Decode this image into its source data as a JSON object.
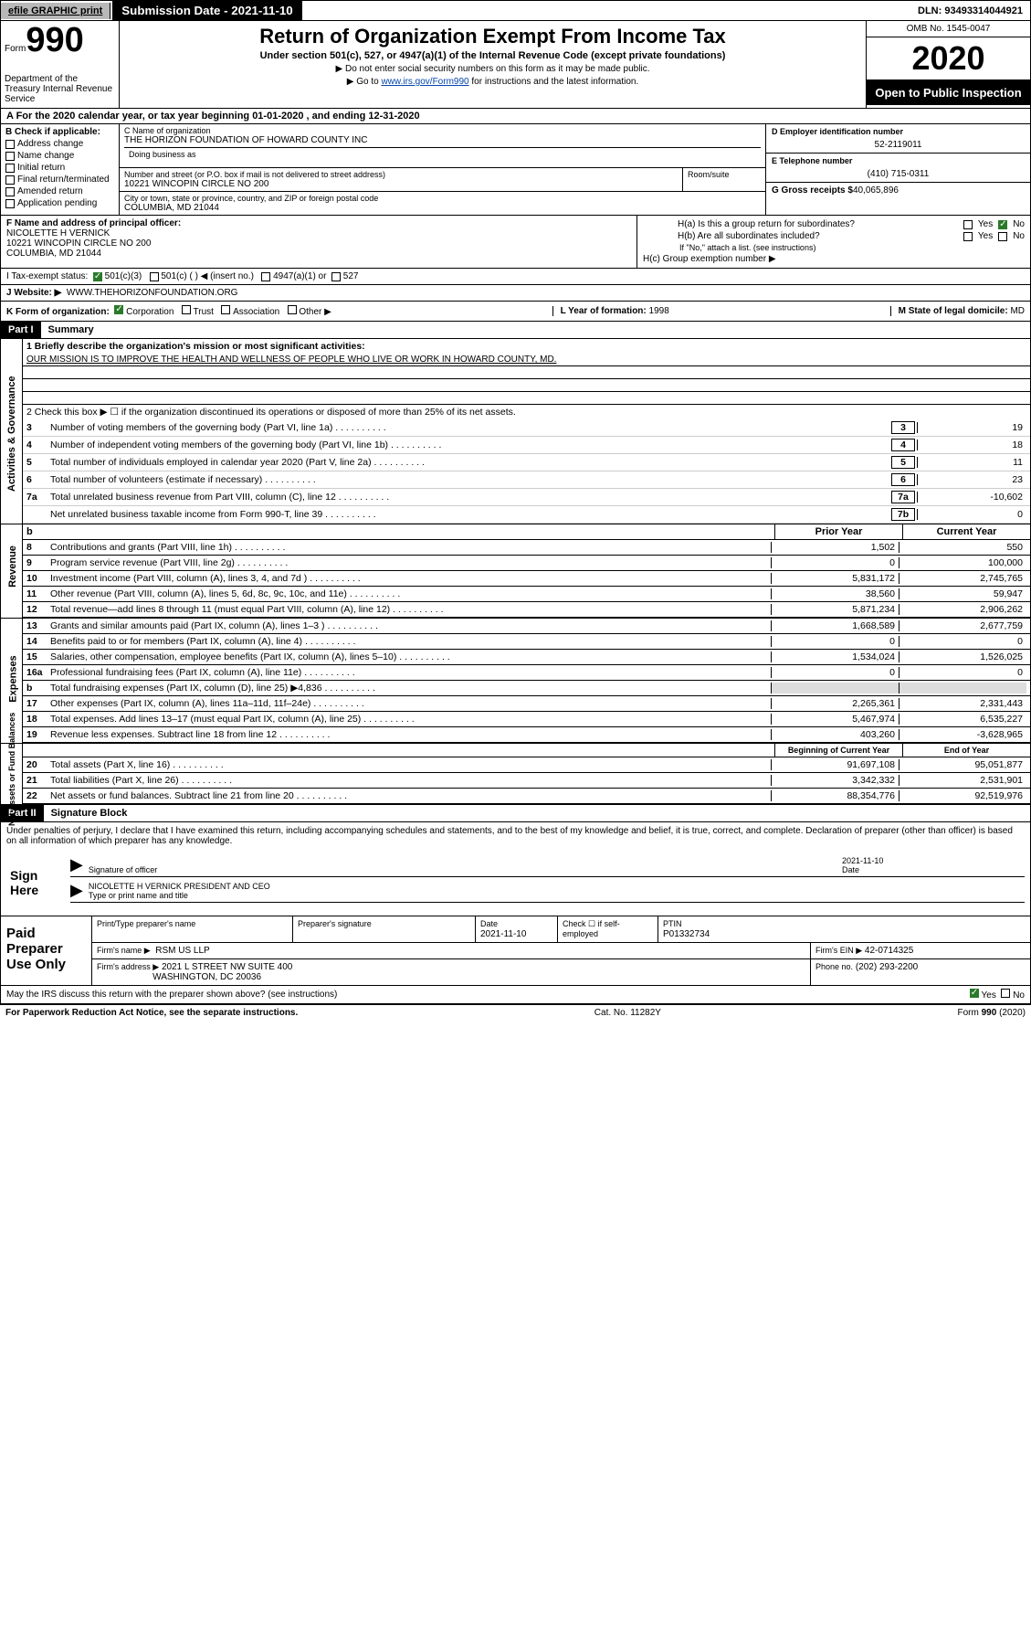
{
  "topbar": {
    "efile": "efile GRAPHIC print",
    "submission_label": "Submission Date - 2021-11-10",
    "dln_label": "DLN: 93493314044921"
  },
  "header": {
    "form_word": "Form",
    "form_number": "990",
    "dept": "Department of the Treasury\nInternal Revenue Service",
    "title": "Return of Organization Exempt From Income Tax",
    "subtitle": "Under section 501(c), 527, or 4947(a)(1) of the Internal Revenue Code (except private foundations)",
    "note1": "▶ Do not enter social security numbers on this form as it may be made public.",
    "note2_pre": "▶ Go to ",
    "note2_link": "www.irs.gov/Form990",
    "note2_post": " for instructions and the latest information.",
    "omb": "OMB No. 1545-0047",
    "year": "2020",
    "open": "Open to Public Inspection"
  },
  "row_a": {
    "text": "A For the 2020 calendar year, or tax year beginning 01-01-2020    , and ending 12-31-2020"
  },
  "col_b": {
    "label": "B Check if applicable:",
    "items": [
      "Address change",
      "Name change",
      "Initial return",
      "Final return/terminated",
      "Amended return",
      "Application pending"
    ]
  },
  "col_c": {
    "name_label": "C Name of organization",
    "name": "THE HORIZON FOUNDATION OF HOWARD COUNTY INC",
    "dba_label": "Doing business as",
    "street_label": "Number and street (or P.O. box if mail is not delivered to street address)",
    "street": "10221 WINCOPIN CIRCLE NO 200",
    "suite_label": "Room/suite",
    "city_label": "City or town, state or province, country, and ZIP or foreign postal code",
    "city": "COLUMBIA, MD  21044"
  },
  "col_d": {
    "label": "D Employer identification number",
    "value": "52-2119011"
  },
  "col_e": {
    "label": "E Telephone number",
    "value": "(410) 715-0311"
  },
  "col_g": {
    "label": "G Gross receipts $",
    "value": "40,065,896"
  },
  "row_f": {
    "label": "F  Name and address of principal officer:",
    "name": "NICOLETTE H VERNICK",
    "street": "10221 WINCOPIN CIRCLE NO 200",
    "city": "COLUMBIA, MD  21044"
  },
  "row_h": {
    "ha": "H(a)  Is this a group return for subordinates?",
    "hb": "H(b)  Are all subordinates included?",
    "hb_note": "If \"No,\" attach a list. (see instructions)",
    "hc": "H(c)  Group exemption number ▶",
    "yes": "Yes",
    "no": "No"
  },
  "row_i": {
    "label": "I   Tax-exempt status:",
    "opts": [
      "501(c)(3)",
      "501(c) (  ) ◀ (insert no.)",
      "4947(a)(1) or",
      "527"
    ]
  },
  "row_j": {
    "label": "J   Website: ▶",
    "value": "WWW.THEHORIZONFOUNDATION.ORG"
  },
  "row_k": {
    "label": "K Form of organization:",
    "opts": [
      "Corporation",
      "Trust",
      "Association",
      "Other ▶"
    ],
    "l_label": "L Year of formation:",
    "l_val": "1998",
    "m_label": "M State of legal domicile:",
    "m_val": "MD"
  },
  "part1": {
    "hdr": "Part I",
    "title": "Summary"
  },
  "summary": {
    "q1_label": "1   Briefly describe the organization's mission or most significant activities:",
    "q1_text": "OUR MISSION IS TO IMPROVE THE HEALTH AND WELLNESS OF PEOPLE WHO LIVE OR WORK IN HOWARD COUNTY, MD.",
    "q2": "2   Check this box ▶ ☐  if the organization discontinued its operations or disposed of more than 25% of its net assets.",
    "tabs": {
      "gov": "Activities & Governance",
      "rev": "Revenue",
      "exp": "Expenses",
      "net": "Net Assets or Fund Balances"
    },
    "lines_gov": [
      {
        "n": "3",
        "t": "Number of voting members of the governing body (Part VI, line 1a)",
        "box": "3",
        "v": "19"
      },
      {
        "n": "4",
        "t": "Number of independent voting members of the governing body (Part VI, line 1b)",
        "box": "4",
        "v": "18"
      },
      {
        "n": "5",
        "t": "Total number of individuals employed in calendar year 2020 (Part V, line 2a)",
        "box": "5",
        "v": "11"
      },
      {
        "n": "6",
        "t": "Total number of volunteers (estimate if necessary)",
        "box": "6",
        "v": "23"
      },
      {
        "n": "7a",
        "t": "Total unrelated business revenue from Part VIII, column (C), line 12",
        "box": "7a",
        "v": "-10,602"
      },
      {
        "n": "",
        "t": "Net unrelated business taxable income from Form 990-T, line 39",
        "box": "7b",
        "v": "0"
      }
    ],
    "col_hdrs": {
      "py": "Prior Year",
      "cy": "Current Year"
    },
    "lines_rev": [
      {
        "n": "8",
        "t": "Contributions and grants (Part VIII, line 1h)",
        "py": "1,502",
        "cy": "550"
      },
      {
        "n": "9",
        "t": "Program service revenue (Part VIII, line 2g)",
        "py": "0",
        "cy": "100,000"
      },
      {
        "n": "10",
        "t": "Investment income (Part VIII, column (A), lines 3, 4, and 7d )",
        "py": "5,831,172",
        "cy": "2,745,765"
      },
      {
        "n": "11",
        "t": "Other revenue (Part VIII, column (A), lines 5, 6d, 8c, 9c, 10c, and 11e)",
        "py": "38,560",
        "cy": "59,947"
      },
      {
        "n": "12",
        "t": "Total revenue—add lines 8 through 11 (must equal Part VIII, column (A), line 12)",
        "py": "5,871,234",
        "cy": "2,906,262"
      }
    ],
    "lines_exp": [
      {
        "n": "13",
        "t": "Grants and similar amounts paid (Part IX, column (A), lines 1–3 )",
        "py": "1,668,589",
        "cy": "2,677,759"
      },
      {
        "n": "14",
        "t": "Benefits paid to or for members (Part IX, column (A), line 4)",
        "py": "0",
        "cy": "0"
      },
      {
        "n": "15",
        "t": "Salaries, other compensation, employee benefits (Part IX, column (A), lines 5–10)",
        "py": "1,534,024",
        "cy": "1,526,025"
      },
      {
        "n": "16a",
        "t": "Professional fundraising fees (Part IX, column (A), line 11e)",
        "py": "0",
        "cy": "0"
      },
      {
        "n": "b",
        "t": "Total fundraising expenses (Part IX, column (D), line 25) ▶4,836",
        "py": "",
        "cy": ""
      },
      {
        "n": "17",
        "t": "Other expenses (Part IX, column (A), lines 11a–11d, 11f–24e)",
        "py": "2,265,361",
        "cy": "2,331,443"
      },
      {
        "n": "18",
        "t": "Total expenses. Add lines 13–17 (must equal Part IX, column (A), line 25)",
        "py": "5,467,974",
        "cy": "6,535,227"
      },
      {
        "n": "19",
        "t": "Revenue less expenses. Subtract line 18 from line 12",
        "py": "403,260",
        "cy": "-3,628,965"
      }
    ],
    "col_hdrs2": {
      "py": "Beginning of Current Year",
      "cy": "End of Year"
    },
    "lines_net": [
      {
        "n": "20",
        "t": "Total assets (Part X, line 16)",
        "py": "91,697,108",
        "cy": "95,051,877"
      },
      {
        "n": "21",
        "t": "Total liabilities (Part X, line 26)",
        "py": "3,342,332",
        "cy": "2,531,901"
      },
      {
        "n": "22",
        "t": "Net assets or fund balances. Subtract line 21 from line 20",
        "py": "88,354,776",
        "cy": "92,519,976"
      }
    ]
  },
  "part2": {
    "hdr": "Part II",
    "title": "Signature Block",
    "decl": "Under penalties of perjury, I declare that I have examined this return, including accompanying schedules and statements, and to the best of my knowledge and belief, it is true, correct, and complete. Declaration of preparer (other than officer) is based on all information of which preparer has any knowledge."
  },
  "sign": {
    "here": "Sign Here",
    "sig_label": "Signature of officer",
    "date_label": "Date",
    "date_val": "2021-11-10",
    "name": "NICOLETTE H VERNICK  PRESIDENT AND CEO",
    "name_label": "Type or print name and title"
  },
  "paid": {
    "label": "Paid Preparer Use Only",
    "r1": {
      "c1_lbl": "Print/Type preparer's name",
      "c2_lbl": "Preparer's signature",
      "c3_lbl": "Date",
      "c3_val": "2021-11-10",
      "c4_lbl": "Check ☐ if self-employed",
      "c5_lbl": "PTIN",
      "c5_val": "P01332734"
    },
    "r2": {
      "c1_lbl": "Firm's name    ▶",
      "c1_val": "RSM US LLP",
      "c2_lbl": "Firm's EIN ▶",
      "c2_val": "42-0714325"
    },
    "r3": {
      "c1_lbl": "Firm's address ▶",
      "c1_val": "2021 L STREET NW SUITE 400",
      "c1_val2": "WASHINGTON, DC  20036",
      "c2_lbl": "Phone no.",
      "c2_val": "(202) 293-2200"
    }
  },
  "bottom": {
    "q": "May the IRS discuss this return with the preparer shown above? (see instructions)",
    "yes": "Yes",
    "no": "No",
    "pra": "For Paperwork Reduction Act Notice, see the separate instructions.",
    "cat": "Cat. No. 11282Y",
    "form": "Form 990 (2020)"
  }
}
